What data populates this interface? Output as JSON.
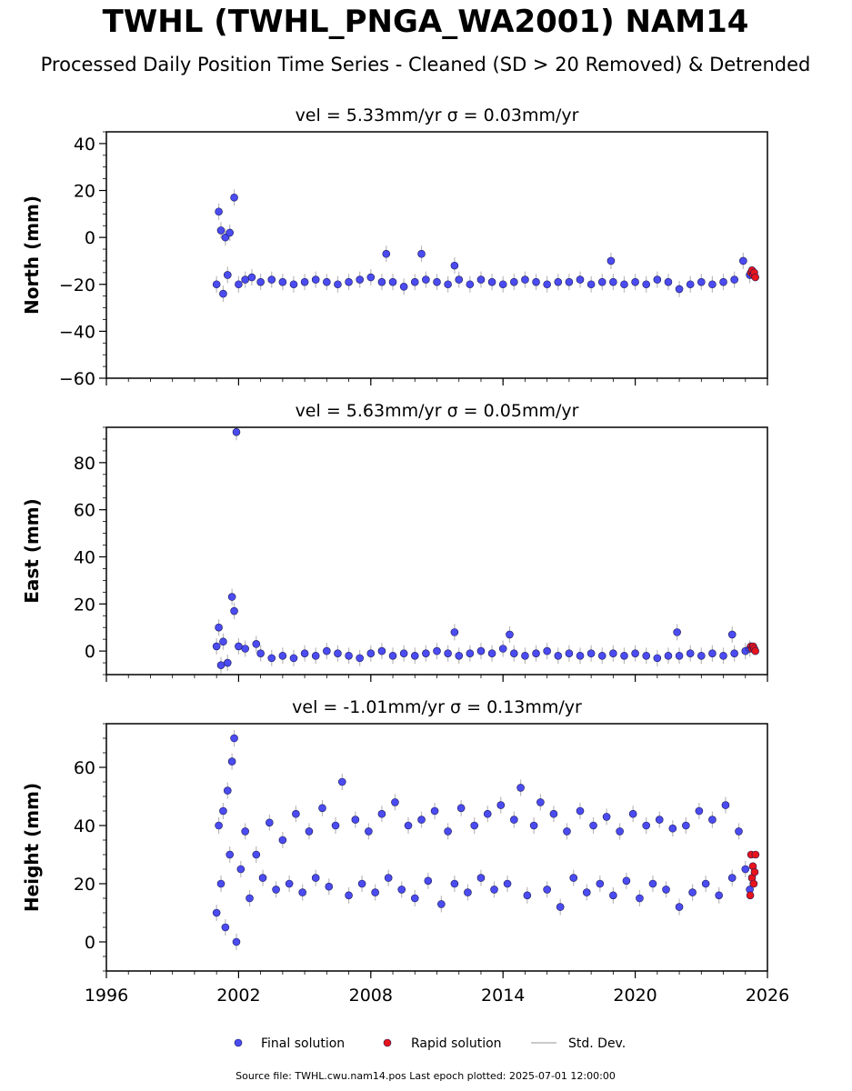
{
  "title": "TWHL (TWHL_PNGA_WA2001) NAM14",
  "subtitle": "Processed Daily Position Time Series - Cleaned (SD > 20 Removed) & Detrended",
  "colors": {
    "final": "#4b4bf2",
    "final_edge": "#1a1a55",
    "rapid": "#e8141c",
    "stddev": "#b9b9b9"
  },
  "legend": {
    "final": "Final solution",
    "rapid": "Rapid solution",
    "stddev": "Std. Dev."
  },
  "source": "Source file: TWHL.cwu.nam14.pos  Last epoch plotted: 2025-07-01 12:00:00",
  "chart_data": [
    {
      "type": "scatter",
      "title": "vel = 5.33mm/yr   σ = 0.03mm/yr",
      "ylabel": "North (mm)",
      "xlim": [
        1996,
        2026
      ],
      "ylim": [
        -60,
        45
      ],
      "yticks": [
        -60,
        -40,
        -20,
        0,
        20,
        40
      ],
      "xticks": [
        1996,
        2002,
        2008,
        2014,
        2020,
        2026
      ],
      "show_xticklabels": false,
      "series": [
        {
          "name": "Final solution",
          "kind": "final",
          "x": [
            2001.0,
            2001.1,
            2001.2,
            2001.3,
            2001.4,
            2001.5,
            2001.6,
            2001.8,
            2002.0,
            2002.3,
            2002.6,
            2003.0,
            2003.5,
            2004.0,
            2004.5,
            2005.0,
            2005.5,
            2006.0,
            2006.5,
            2007.0,
            2007.5,
            2008.0,
            2008.5,
            2008.7,
            2009.0,
            2009.5,
            2010.0,
            2010.3,
            2010.5,
            2011.0,
            2011.5,
            2011.8,
            2012.0,
            2012.5,
            2013.0,
            2013.5,
            2014.0,
            2014.5,
            2015.0,
            2015.5,
            2016.0,
            2016.5,
            2017.0,
            2017.5,
            2018.0,
            2018.5,
            2018.9,
            2019.0,
            2019.5,
            2020.0,
            2020.5,
            2021.0,
            2021.5,
            2022.0,
            2022.5,
            2023.0,
            2023.5,
            2024.0,
            2024.5,
            2024.9,
            2025.2
          ],
          "y": [
            -20,
            11,
            3,
            -24,
            0,
            -16,
            2,
            17,
            -20,
            -18,
            -17,
            -19,
            -18,
            -19,
            -20,
            -19,
            -18,
            -19,
            -20,
            -19,
            -18,
            -17,
            -19,
            -7,
            -19,
            -21,
            -19,
            -7,
            -18,
            -19,
            -20,
            -12,
            -18,
            -20,
            -18,
            -19,
            -20,
            -19,
            -18,
            -19,
            -20,
            -19,
            -19,
            -18,
            -20,
            -19,
            -10,
            -19,
            -20,
            -19,
            -20,
            -18,
            -19,
            -22,
            -20,
            -19,
            -20,
            -19,
            -18,
            -10,
            -16
          ]
        },
        {
          "name": "Rapid solution",
          "kind": "rapid",
          "x": [
            2025.25,
            2025.3,
            2025.35,
            2025.4,
            2025.45
          ],
          "y": [
            -15,
            -14,
            -16,
            -15,
            -17
          ]
        }
      ]
    },
    {
      "type": "scatter",
      "title": "vel = 5.63mm/yr   σ = 0.05mm/yr",
      "ylabel": "East (mm)",
      "xlim": [
        1996,
        2026
      ],
      "ylim": [
        -10,
        95
      ],
      "yticks": [
        0,
        20,
        40,
        60,
        80
      ],
      "xticks": [
        1996,
        2002,
        2008,
        2014,
        2020,
        2026
      ],
      "show_xticklabels": false,
      "series": [
        {
          "name": "Final solution",
          "kind": "final",
          "x": [
            2001.0,
            2001.1,
            2001.2,
            2001.3,
            2001.5,
            2001.7,
            2001.8,
            2001.9,
            2002.0,
            2002.3,
            2002.8,
            2003.0,
            2003.5,
            2004.0,
            2004.5,
            2005.0,
            2005.5,
            2006.0,
            2006.5,
            2007.0,
            2007.5,
            2008.0,
            2008.5,
            2009.0,
            2009.5,
            2010.0,
            2010.5,
            2011.0,
            2011.5,
            2011.8,
            2012.0,
            2012.5,
            2013.0,
            2013.5,
            2014.0,
            2014.3,
            2014.5,
            2015.0,
            2015.5,
            2016.0,
            2016.5,
            2017.0,
            2017.5,
            2018.0,
            2018.5,
            2019.0,
            2019.5,
            2020.0,
            2020.5,
            2021.0,
            2021.5,
            2021.9,
            2022.0,
            2022.5,
            2023.0,
            2023.5,
            2024.0,
            2024.4,
            2024.5,
            2025.0,
            2025.2
          ],
          "y": [
            2,
            10,
            -6,
            4,
            -5,
            23,
            17,
            93,
            2,
            1,
            3,
            -1,
            -3,
            -2,
            -3,
            -1,
            -2,
            0,
            -1,
            -2,
            -3,
            -1,
            0,
            -2,
            -1,
            -2,
            -1,
            0,
            -1,
            8,
            -2,
            -1,
            0,
            -1,
            1,
            7,
            -1,
            -2,
            -1,
            0,
            -2,
            -1,
            -2,
            -1,
            -2,
            -1,
            -2,
            -1,
            -2,
            -3,
            -2,
            8,
            -2,
            -1,
            -2,
            -1,
            -2,
            7,
            -1,
            0,
            1
          ]
        },
        {
          "name": "Rapid solution",
          "kind": "rapid",
          "x": [
            2025.25,
            2025.3,
            2025.35,
            2025.4,
            2025.45
          ],
          "y": [
            2,
            1,
            2,
            1,
            0
          ]
        }
      ]
    },
    {
      "type": "scatter",
      "title": "vel = -1.01mm/yr   σ = 0.13mm/yr",
      "ylabel": "Height (mm)",
      "xlim": [
        1996,
        2026
      ],
      "ylim": [
        -10,
        75
      ],
      "yticks": [
        0,
        20,
        40,
        60
      ],
      "xticks": [
        1996,
        2002,
        2008,
        2014,
        2020,
        2026
      ],
      "show_xticklabels": true,
      "series": [
        {
          "name": "Final solution",
          "kind": "final",
          "x": [
            2001.0,
            2001.1,
            2001.2,
            2001.3,
            2001.4,
            2001.5,
            2001.6,
            2001.7,
            2001.8,
            2001.9,
            2002.1,
            2002.3,
            2002.5,
            2002.8,
            2003.1,
            2003.4,
            2003.7,
            2004.0,
            2004.3,
            2004.6,
            2004.9,
            2005.2,
            2005.5,
            2005.8,
            2006.1,
            2006.4,
            2006.7,
            2007.0,
            2007.3,
            2007.6,
            2007.9,
            2008.2,
            2008.5,
            2008.8,
            2009.1,
            2009.4,
            2009.7,
            2010.0,
            2010.3,
            2010.6,
            2010.9,
            2011.2,
            2011.5,
            2011.8,
            2012.1,
            2012.4,
            2012.7,
            2013.0,
            2013.3,
            2013.6,
            2013.9,
            2014.2,
            2014.5,
            2014.8,
            2015.1,
            2015.4,
            2015.7,
            2016.0,
            2016.3,
            2016.6,
            2016.9,
            2017.2,
            2017.5,
            2017.8,
            2018.1,
            2018.4,
            2018.7,
            2019.0,
            2019.3,
            2019.6,
            2019.9,
            2020.2,
            2020.5,
            2020.8,
            2021.1,
            2021.4,
            2021.7,
            2022.0,
            2022.3,
            2022.6,
            2022.9,
            2023.2,
            2023.5,
            2023.8,
            2024.1,
            2024.4,
            2024.7,
            2025.0,
            2025.2
          ],
          "y": [
            10,
            40,
            20,
            45,
            5,
            52,
            30,
            62,
            70,
            0,
            25,
            38,
            15,
            30,
            22,
            41,
            18,
            35,
            20,
            44,
            17,
            38,
            22,
            46,
            19,
            40,
            55,
            16,
            42,
            20,
            38,
            17,
            44,
            22,
            48,
            18,
            40,
            15,
            42,
            21,
            45,
            13,
            38,
            20,
            46,
            17,
            40,
            22,
            44,
            18,
            47,
            20,
            42,
            53,
            16,
            40,
            48,
            18,
            44,
            12,
            38,
            22,
            45,
            17,
            40,
            20,
            43,
            16,
            38,
            21,
            44,
            15,
            40,
            20,
            42,
            18,
            39,
            12,
            40,
            17,
            45,
            20,
            42,
            16,
            47,
            22,
            38,
            25,
            18
          ]
        },
        {
          "name": "Rapid solution",
          "kind": "rapid",
          "x": [
            2025.22,
            2025.26,
            2025.3,
            2025.34,
            2025.38,
            2025.42,
            2025.46
          ],
          "y": [
            16,
            30,
            22,
            26,
            20,
            24,
            30
          ]
        }
      ]
    }
  ]
}
